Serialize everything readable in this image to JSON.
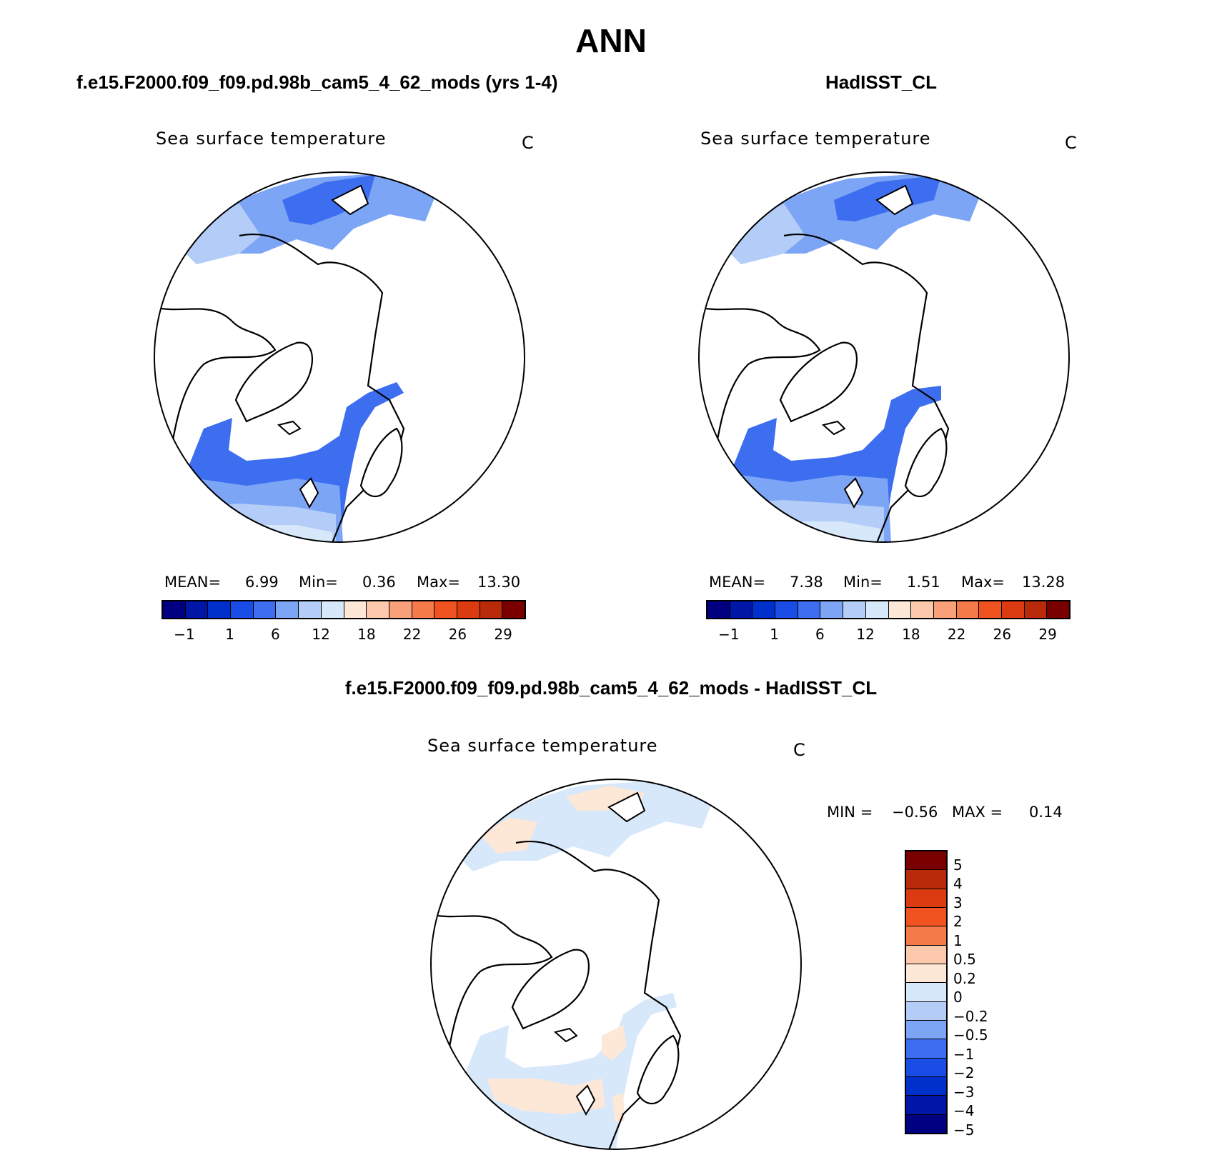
{
  "title": "ANN",
  "panels": {
    "model": {
      "case_title": "f.e15.F2000.f09_f09.pd.98b_cam5_4_62_mods (yrs 1-4)",
      "field_label": "Sea surface temperature",
      "units": "C",
      "stats": {
        "mean_label": "MEAN=",
        "mean": "6.99",
        "min_label": "Min=",
        "min": "0.36",
        "max_label": "Max=",
        "max": "13.30"
      }
    },
    "obs": {
      "case_title": "HadISST_CL",
      "field_label": "Sea surface temperature",
      "units": "C",
      "stats": {
        "mean_label": "MEAN=",
        "mean": "7.38",
        "min_label": "Min=",
        "min": "1.51",
        "max_label": "Max=",
        "max": "13.28"
      }
    },
    "diff": {
      "case_title": "f.e15.F2000.f09_f09.pd.98b_cam5_4_62_mods - HadISST_CL",
      "field_label": "Sea surface temperature",
      "units": "C",
      "stats": {
        "min_label": "MIN =",
        "min": "−0.56",
        "max_label": "MAX =",
        "max": "0.14"
      }
    }
  },
  "colorbar_abs": {
    "colors": [
      "#000080",
      "#0016a6",
      "#0030cc",
      "#1a4de6",
      "#3d6ef0",
      "#7da5f5",
      "#b3cdf8",
      "#d8e8fb",
      "#fde8d8",
      "#fcc9ad",
      "#f9a07a",
      "#f57a4a",
      "#f0531f",
      "#dc3a10",
      "#b82a0a",
      "#7a0000"
    ],
    "ticks": [
      "−1",
      "1",
      "6",
      "12",
      "18",
      "22",
      "26",
      "29"
    ]
  },
  "colorbar_diff": {
    "colors_top_to_bottom": [
      "#7a0000",
      "#b82a0a",
      "#dc3a10",
      "#f0531f",
      "#f57a4a",
      "#fcc9ad",
      "#fde8d8",
      "#d8e8fb",
      "#b3cdf8",
      "#7da5f5",
      "#3d6ef0",
      "#1a4de6",
      "#0030cc",
      "#0016a6",
      "#000080"
    ],
    "ticks": [
      "5",
      "4",
      "3",
      "2",
      "1",
      "0.5",
      "0.2",
      "0",
      "−0.2",
      "−0.5",
      "−1",
      "−2",
      "−3",
      "−4",
      "−5"
    ]
  }
}
